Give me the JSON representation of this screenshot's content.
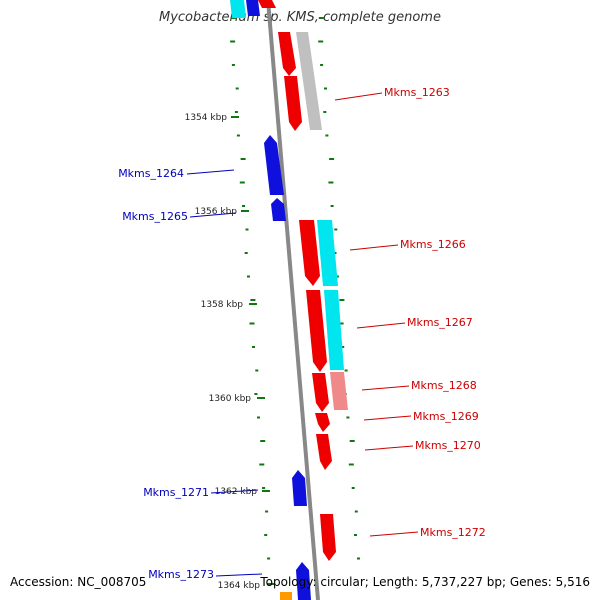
{
  "title": "Mycobacterium sp. KMS, complete genome",
  "footer": {
    "accession": "Accession: NC_008705",
    "summary": "Topology: circular; Length: 5,737,227 bp; Genes: 5,516"
  },
  "colors": {
    "forward_gene": "#ee0000",
    "reverse_gene": "#1010dd",
    "forward_label": "#cc0000",
    "reverse_label": "#0000bb",
    "backbone": "#888888",
    "gc_tick": "#117711",
    "cyan_track": "#00e0e8",
    "gray_track": "#b8b8b8",
    "pink_track": "#f08080",
    "orange_mark": "#ff9900"
  },
  "scale_ticks": [
    "1354 kbp",
    "1356 kbp",
    "1358 kbp",
    "1360 kbp",
    "1362 kbp",
    "1364 kbp"
  ],
  "genes": {
    "forward": [
      "Mkms_1263",
      "Mkms_1266",
      "Mkms_1267",
      "Mkms_1268",
      "Mkms_1269",
      "Mkms_1270",
      "Mkms_1272"
    ],
    "reverse": [
      "Mkms_1264",
      "Mkms_1265",
      "Mkms_1271",
      "Mkms_1273"
    ]
  }
}
